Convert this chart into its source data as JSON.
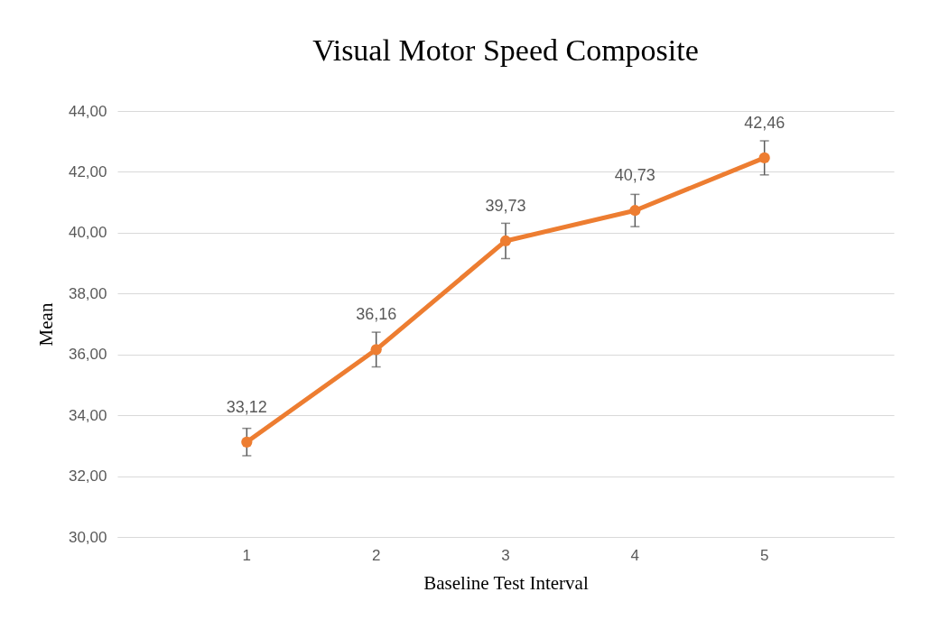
{
  "chart_data": {
    "type": "line",
    "title": "Visual Motor Speed Composite",
    "xlabel": "Baseline Test Interval",
    "ylabel": "Mean",
    "categories": [
      "1",
      "2",
      "3",
      "4",
      "5"
    ],
    "series": [
      {
        "color": "#ed7d31",
        "values": [
          33.12,
          36.16,
          39.73,
          40.73,
          42.46
        ],
        "errors": [
          0.45,
          0.57,
          0.58,
          0.53,
          0.56
        ],
        "value_labels": [
          "33,12",
          "36,16",
          "39,73",
          "40,73",
          "42,46"
        ]
      }
    ],
    "ylim": [
      30,
      44
    ],
    "yticks": [
      {
        "value": 30,
        "label": "30,00"
      },
      {
        "value": 32,
        "label": "32,00"
      },
      {
        "value": 34,
        "label": "34,00"
      },
      {
        "value": 36,
        "label": "36,00"
      },
      {
        "value": 38,
        "label": "38,00"
      },
      {
        "value": 40,
        "label": "40,00"
      },
      {
        "value": 42,
        "label": "42,00"
      },
      {
        "value": 44,
        "label": "44,00"
      }
    ],
    "grid": "y",
    "marker": "circle",
    "line_style": "solid"
  }
}
